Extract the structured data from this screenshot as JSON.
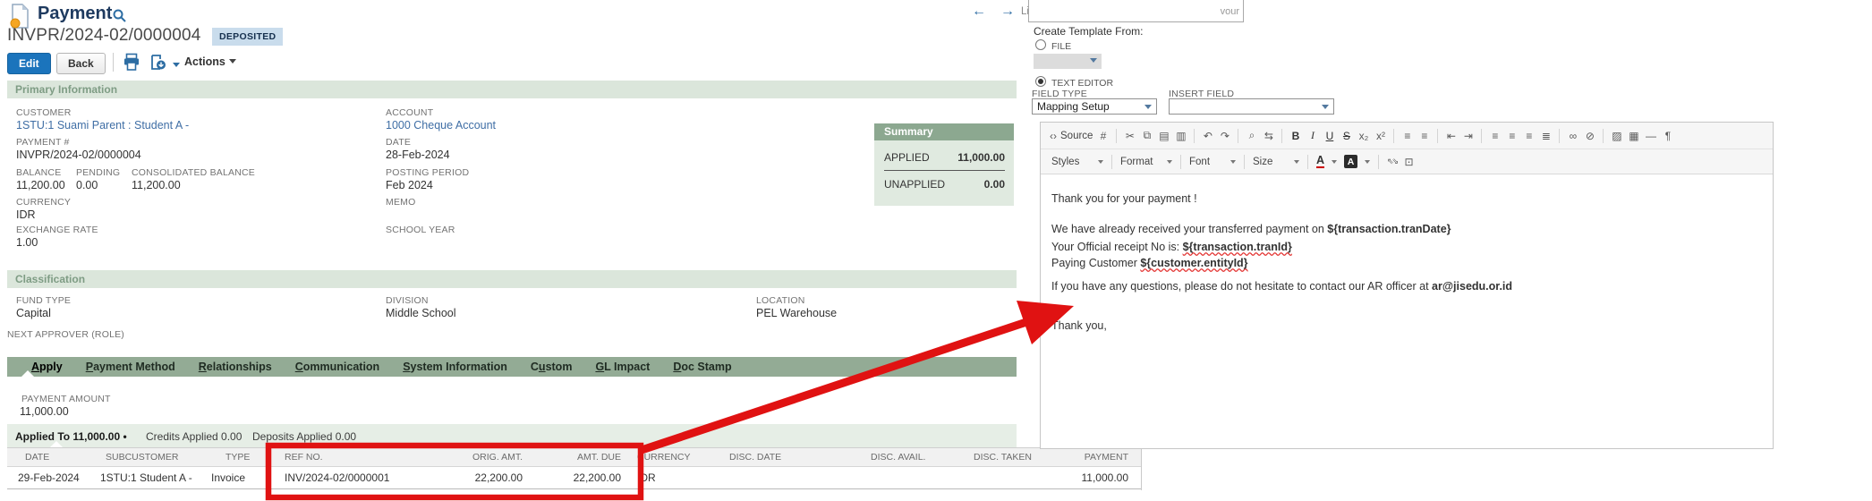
{
  "header": {
    "title": "Payment",
    "record_number": "INVPR/2024-02/0000004",
    "status_badge": "DEPOSITED",
    "edit_button": "Edit",
    "back_button": "Back",
    "actions_button": "Actions"
  },
  "record_nav": {
    "prev": "←",
    "next": "→",
    "list_label": "Li",
    "overlap_text": "vour"
  },
  "primary": {
    "title": "Primary Information",
    "customer": {
      "label": "CUSTOMER",
      "value": "1STU:1 Suami Parent : Student A -"
    },
    "payment_no": {
      "label": "PAYMENT #",
      "value": "INVPR/2024-02/0000004"
    },
    "balance": {
      "label": "BALANCE",
      "value": "11,200.00"
    },
    "pending": {
      "label": "PENDING",
      "value": "0.00"
    },
    "consolidated": {
      "label": "CONSOLIDATED BALANCE",
      "value": "11,200.00"
    },
    "currency": {
      "label": "CURRENCY",
      "value": "IDR"
    },
    "exchange_rate": {
      "label": "EXCHANGE RATE",
      "value": "1.00"
    },
    "account": {
      "label": "ACCOUNT",
      "value": "1000 Cheque Account"
    },
    "date": {
      "label": "DATE",
      "value": "28-Feb-2024"
    },
    "posting_period": {
      "label": "POSTING PERIOD",
      "value": "Feb 2024"
    },
    "memo": {
      "label": "MEMO",
      "value": ""
    },
    "school_year": {
      "label": "SCHOOL YEAR",
      "value": ""
    }
  },
  "summary": {
    "title": "Summary",
    "applied_label": "APPLIED",
    "applied_value": "11,000.00",
    "unapplied_label": "UNAPPLIED",
    "unapplied_value": "0.00"
  },
  "classification": {
    "title": "Classification",
    "fund_type": {
      "label": "FUND TYPE",
      "value": "Capital"
    },
    "division": {
      "label": "DIVISION",
      "value": "Middle School"
    },
    "location": {
      "label": "LOCATION",
      "value": "PEL Warehouse"
    },
    "next_approver": {
      "label": "NEXT APPROVER (ROLE)",
      "value": ""
    }
  },
  "tabs": [
    {
      "pre": "",
      "u": "A",
      "post": "pply"
    },
    {
      "pre": "",
      "u": "P",
      "post": "ayment Method"
    },
    {
      "pre": "",
      "u": "R",
      "post": "elationships"
    },
    {
      "pre": "",
      "u": "C",
      "post": "ommunication"
    },
    {
      "pre": "",
      "u": "S",
      "post": "ystem Information"
    },
    {
      "pre": "C",
      "u": "u",
      "post": "stom"
    },
    {
      "pre": "",
      "u": "G",
      "post": "L Impact"
    },
    {
      "pre": "",
      "u": "D",
      "post": "oc Stamp"
    }
  ],
  "apply": {
    "payment_amount_label": "PAYMENT AMOUNT",
    "payment_amount_value": "11,000.00",
    "subtabs": [
      "Applied To 11,000.00 •",
      "Credits Applied 0.00",
      "Deposits Applied 0.00"
    ],
    "table": {
      "headers": [
        "DATE",
        "SUBCUSTOMER",
        "TYPE",
        "REF NO.",
        "ORIG. AMT.",
        "AMT. DUE",
        "CURRENCY",
        "DISC. DATE",
        "DISC. AVAIL.",
        "DISC. TAKEN",
        "PAYMENT"
      ],
      "row": [
        "29-Feb-2024",
        "1STU:1 Student A -",
        "Invoice",
        "INV/2024-02/0000001",
        "22,200.00",
        "22,200.00",
        "IDR",
        "",
        "",
        "",
        "11,000.00"
      ]
    }
  },
  "panel": {
    "create_template_label": "Create Template From:",
    "file_option": "FILE",
    "text_editor_option": "TEXT EDITOR",
    "field_type_label": "FIELD TYPE",
    "field_type_value": "Mapping Setup",
    "insert_field_label": "INSERT FIELD",
    "insert_field_value": "",
    "editor": {
      "toolbar1": [
        {
          "name": "source-button",
          "glyph": "‹›",
          "label": "Source"
        },
        {
          "name": "insert-placeholder-icon",
          "glyph": "#"
        },
        {
          "sep": true
        },
        {
          "name": "cut-icon",
          "glyph": "✂"
        },
        {
          "name": "copy-icon",
          "glyph": "⧉"
        },
        {
          "name": "paste-icon",
          "glyph": "▤"
        },
        {
          "name": "paste-from-word-icon",
          "glyph": "▥"
        },
        {
          "sep": true
        },
        {
          "name": "undo-icon",
          "glyph": "↶"
        },
        {
          "name": "redo-icon",
          "glyph": "↷"
        },
        {
          "sep": true
        },
        {
          "name": "find-icon",
          "glyph": "⌕"
        },
        {
          "name": "replace-icon",
          "glyph": "⇆"
        },
        {
          "sep": true
        },
        {
          "name": "bold-icon",
          "glyph": "B",
          "style": "b"
        },
        {
          "name": "italic-icon",
          "glyph": "I",
          "style": "i"
        },
        {
          "name": "underline-icon",
          "glyph": "U",
          "style": "u"
        },
        {
          "name": "strikethrough-icon",
          "glyph": "S",
          "style": "s"
        },
        {
          "name": "subscript-icon",
          "glyph": "x₂"
        },
        {
          "name": "superscript-icon",
          "glyph": "x²"
        },
        {
          "sep": true
        },
        {
          "name": "numbered-list-icon",
          "glyph": "≡"
        },
        {
          "name": "bullet-list-icon",
          "glyph": "≡"
        },
        {
          "sep": true
        },
        {
          "name": "outdent-icon",
          "glyph": "⇤"
        },
        {
          "name": "indent-icon",
          "glyph": "⇥"
        },
        {
          "sep": true
        },
        {
          "name": "align-left-icon",
          "glyph": "≡"
        },
        {
          "name": "align-center-icon",
          "glyph": "≡"
        },
        {
          "name": "align-right-icon",
          "glyph": "≡"
        },
        {
          "name": "justify-icon",
          "glyph": "≣"
        },
        {
          "sep": true
        },
        {
          "name": "link-icon",
          "glyph": "∞"
        },
        {
          "name": "unlink-icon",
          "glyph": "⊘"
        },
        {
          "sep": true
        },
        {
          "name": "image-icon",
          "glyph": "▨"
        },
        {
          "name": "table-icon",
          "glyph": "▦"
        },
        {
          "name": "horizontal-rule-icon",
          "glyph": "—"
        },
        {
          "name": "page-break-icon",
          "glyph": "¶"
        }
      ],
      "styles_label": "Styles",
      "format_label": "Format",
      "font_label": "Font",
      "size_label": "Size",
      "text_color_glyph": "A",
      "bg_color_glyph": "A",
      "maximize_glyph": "⇖⇘",
      "show_blocks_glyph": "⊡",
      "lines": [
        {
          "pre": "Thank you for your payment !",
          "bold": ""
        },
        {
          "pre": "We have already received your transferred payment on ",
          "bold": "${transaction.tranDate}"
        },
        {
          "pre": "Your Official receipt No is: ",
          "bold": "${transaction.tranId}"
        },
        {
          "pre": "Paying Customer ",
          "bold": "${customer.entityId}"
        },
        {
          "pre": "If you have any questions, please do not hesitate to contact our AR officer at ",
          "bold": "ar@jisedu.or.id"
        },
        {
          "pre": "Thank you,",
          "bold": ""
        }
      ]
    }
  },
  "colors": {
    "annotation_red": "#e01212",
    "link_blue": "#3f6ea5",
    "tab_green": "#93ab95",
    "section_green": "#dbe6db",
    "summary_green": "#8ca890",
    "badge_blue": "#c9dcec",
    "button_blue": "#1b74bc"
  }
}
